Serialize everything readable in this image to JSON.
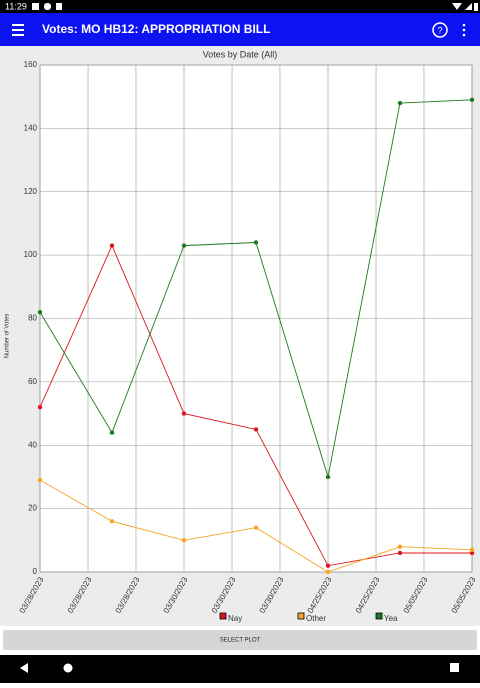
{
  "status_bar": {
    "time": "11:29"
  },
  "app_bar": {
    "title": "Votes: MO HB12: APPROPRIATION BILL"
  },
  "chart_data": {
    "type": "line",
    "title": "Votes by Date (All)",
    "y_label": "Number of Votes",
    "x": [
      0,
      1,
      2,
      3,
      4,
      5,
      6
    ],
    "xlim": [
      0,
      6
    ],
    "xticks": [
      {
        "value": 0,
        "label": "03/28/2023"
      },
      {
        "value": 0.667,
        "label": "03/28/2023"
      },
      {
        "value": 1.333,
        "label": "03/28/2023"
      },
      {
        "value": 2,
        "label": "03/30/2023"
      },
      {
        "value": 2.667,
        "label": "03/30/2023"
      },
      {
        "value": 3.333,
        "label": "03/30/2023"
      },
      {
        "value": 4,
        "label": "04/25/2023"
      },
      {
        "value": 4.667,
        "label": "04/25/2023"
      },
      {
        "value": 5.333,
        "label": "05/05/2023"
      },
      {
        "value": 6,
        "label": "05/05/2023"
      }
    ],
    "ylim": [
      0,
      160
    ],
    "yticks": [
      0,
      20,
      40,
      60,
      80,
      100,
      120,
      140,
      160
    ],
    "grid": true,
    "series": [
      {
        "name": "Nay",
        "color": "#e0141e",
        "values": [
          52,
          103,
          50,
          45,
          2,
          6,
          6
        ]
      },
      {
        "name": "Other",
        "color": "#f5a623",
        "values": [
          29,
          16,
          10,
          14,
          0,
          8,
          7
        ]
      },
      {
        "name": "Yea",
        "color": "#1e7a1e",
        "values": [
          82,
          44,
          103,
          104,
          30,
          148,
          149
        ]
      }
    ]
  },
  "button": {
    "label": "SELECT PLOT"
  }
}
